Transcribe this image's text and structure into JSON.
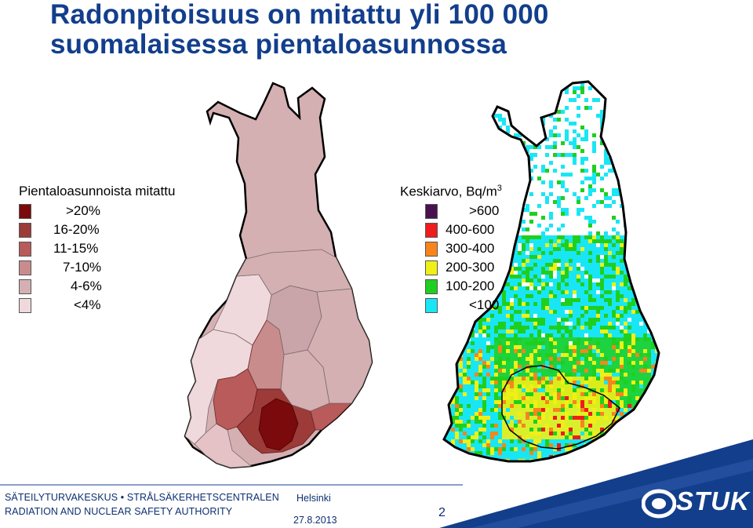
{
  "title": {
    "line1": "Radonpitoisuus on mitattu yli 100 000",
    "line2": "suomalaisessa pientaloasunnossa"
  },
  "legend_left": {
    "title": "Pientaloasunnoista mitattu",
    "items": [
      {
        "label": ">20%",
        "color": "#7a0a0c"
      },
      {
        "label": "16-20%",
        "color": "#9c3b38"
      },
      {
        "label": "11-15%",
        "color": "#b85b5a"
      },
      {
        "label": "7-10%",
        "color": "#c98c8c"
      },
      {
        "label": "4-6%",
        "color": "#d4b0b3"
      },
      {
        "label": "<4%",
        "color": "#f0d9dc"
      }
    ]
  },
  "legend_right": {
    "title": "Keskiarvo, Bq/m",
    "title_sup": "3",
    "items": [
      {
        "label": ">600",
        "color": "#4a1150"
      },
      {
        "label": "400-600",
        "color": "#ee1c1c"
      },
      {
        "label": "300-400",
        "color": "#f7851c"
      },
      {
        "label": "200-300",
        "color": "#f0f016"
      },
      {
        "label": "100-200",
        "color": "#1fcf1f"
      },
      {
        "label": "<100",
        "color": "#19e6f5"
      }
    ]
  },
  "footer": {
    "org_line1": "SÄTEILYTURVAKESKUS • STRÅLSÄKERHETSCENTRALEN",
    "org_line2": "RADIATION AND NUCLEAR SAFETY AUTHORITY",
    "place": "Helsinki",
    "date": "27.8.2013",
    "page": "2",
    "logo": "STUK",
    "band_color": "#123e8c"
  }
}
